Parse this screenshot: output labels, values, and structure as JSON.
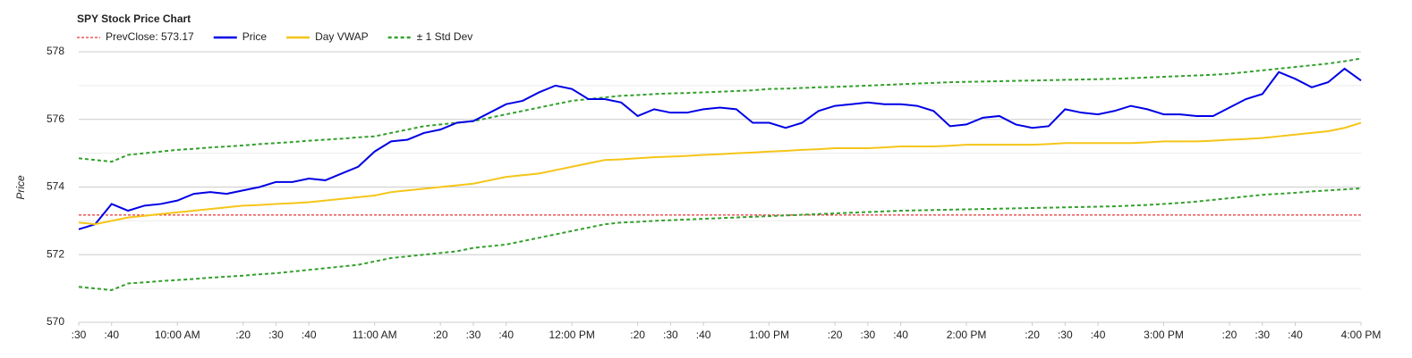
{
  "chart_data": {
    "type": "line",
    "title": "SPY Stock Price Chart",
    "y_label": "Price",
    "x": [
      570,
      575,
      580,
      585,
      590,
      595,
      600,
      605,
      610,
      615,
      620,
      625,
      630,
      635,
      640,
      645,
      650,
      655,
      660,
      665,
      670,
      675,
      680,
      685,
      690,
      695,
      700,
      705,
      710,
      715,
      720,
      725,
      730,
      735,
      740,
      745,
      750,
      755,
      760,
      765,
      770,
      775,
      780,
      785,
      790,
      795,
      800,
      805,
      810,
      815,
      820,
      825,
      830,
      835,
      840,
      845,
      850,
      855,
      860,
      865,
      870,
      875,
      880,
      885,
      890,
      895,
      900,
      905,
      910,
      915,
      920,
      925,
      930,
      935,
      940,
      945,
      950,
      955,
      960
    ],
    "prev_close": {
      "name": "PrevClose: 573.17",
      "value": 573.17,
      "color": "#e00000",
      "dash": true
    },
    "series": [
      {
        "name": "Price",
        "color": "#0000e6",
        "dash": false,
        "values": [
          572.75,
          572.9,
          573.5,
          573.3,
          573.45,
          573.5,
          573.6,
          573.8,
          573.85,
          573.8,
          573.9,
          574.0,
          574.15,
          574.15,
          574.25,
          574.2,
          574.4,
          574.6,
          575.05,
          575.35,
          575.4,
          575.6,
          575.7,
          575.9,
          575.95,
          576.2,
          576.45,
          576.55,
          576.8,
          577.0,
          576.9,
          576.6,
          576.6,
          576.5,
          576.1,
          576.3,
          576.2,
          576.2,
          576.3,
          576.35,
          576.3,
          575.9,
          575.9,
          575.75,
          575.9,
          576.25,
          576.4,
          576.45,
          576.5,
          576.45,
          576.45,
          576.4,
          576.25,
          575.8,
          575.85,
          576.05,
          576.1,
          575.85,
          575.75,
          575.8,
          576.3,
          576.2,
          576.15,
          576.25,
          576.4,
          576.3,
          576.15,
          576.15,
          576.1,
          576.1,
          576.35,
          576.6,
          576.75,
          577.4,
          577.2,
          576.95,
          577.1,
          577.5,
          577.15
        ]
      },
      {
        "name": "Day VWAP",
        "color": "#f5c518",
        "dash": false,
        "values": [
          572.95,
          572.9,
          573.0,
          573.1,
          573.15,
          573.2,
          573.25,
          573.3,
          573.35,
          573.4,
          573.45,
          573.47,
          573.5,
          573.52,
          573.55,
          573.6,
          573.65,
          573.7,
          573.75,
          573.85,
          573.9,
          573.95,
          574.0,
          574.05,
          574.1,
          574.2,
          574.3,
          574.35,
          574.4,
          574.5,
          574.6,
          574.7,
          574.8,
          574.82,
          574.85,
          574.88,
          574.9,
          574.92,
          574.95,
          574.97,
          575.0,
          575.02,
          575.05,
          575.07,
          575.1,
          575.12,
          575.15,
          575.15,
          575.15,
          575.17,
          575.2,
          575.2,
          575.2,
          575.22,
          575.25,
          575.25,
          575.25,
          575.25,
          575.25,
          575.27,
          575.3,
          575.3,
          575.3,
          575.3,
          575.3,
          575.32,
          575.35,
          575.35,
          575.35,
          575.37,
          575.4,
          575.42,
          575.45,
          575.5,
          575.55,
          575.6,
          575.65,
          575.75,
          575.9
        ]
      }
    ],
    "bands": {
      "name": "± 1 Std Dev",
      "color": "#33a02c",
      "dash": true,
      "upper": [
        574.85,
        574.8,
        574.75,
        574.95,
        575.0,
        575.05,
        575.1,
        575.13,
        575.17,
        575.2,
        575.23,
        575.27,
        575.3,
        575.33,
        575.37,
        575.4,
        575.43,
        575.47,
        575.5,
        575.6,
        575.7,
        575.8,
        575.85,
        575.9,
        575.95,
        576.05,
        576.15,
        576.25,
        576.35,
        576.45,
        576.55,
        576.6,
        576.65,
        576.7,
        576.72,
        576.75,
        576.77,
        576.78,
        576.8,
        576.82,
        576.84,
        576.86,
        576.9,
        576.91,
        576.93,
        576.95,
        576.96,
        576.98,
        577.0,
        577.02,
        577.04,
        577.06,
        577.08,
        577.1,
        577.11,
        577.12,
        577.13,
        577.14,
        577.15,
        577.16,
        577.17,
        577.18,
        577.19,
        577.2,
        577.22,
        577.24,
        577.26,
        577.28,
        577.3,
        577.32,
        577.35,
        577.4,
        577.45,
        577.5,
        577.55,
        577.6,
        577.65,
        577.72,
        577.8
      ],
      "lower": [
        571.05,
        571.0,
        570.95,
        571.15,
        571.18,
        571.22,
        571.25,
        571.28,
        571.32,
        571.35,
        571.38,
        571.42,
        571.45,
        571.5,
        571.55,
        571.6,
        571.65,
        571.7,
        571.8,
        571.9,
        571.95,
        572.0,
        572.05,
        572.1,
        572.2,
        572.25,
        572.3,
        572.4,
        572.5,
        572.6,
        572.7,
        572.8,
        572.9,
        572.95,
        572.97,
        573.0,
        573.02,
        573.04,
        573.06,
        573.08,
        573.1,
        573.12,
        573.14,
        573.16,
        573.18,
        573.2,
        573.22,
        573.24,
        573.26,
        573.28,
        573.3,
        573.31,
        573.32,
        573.33,
        573.34,
        573.35,
        573.36,
        573.37,
        573.38,
        573.39,
        573.4,
        573.41,
        573.42,
        573.43,
        573.45,
        573.47,
        573.5,
        573.53,
        573.57,
        573.62,
        573.67,
        573.72,
        573.77,
        573.8,
        573.83,
        573.87,
        573.9,
        573.93,
        573.96
      ]
    },
    "xlim": [
      570,
      960
    ],
    "xticks": [
      {
        "value": 570,
        "label": ":30"
      },
      {
        "value": 580,
        "label": ":40"
      },
      {
        "value": 600,
        "label": "10:00 AM"
      },
      {
        "value": 620,
        "label": ":20"
      },
      {
        "value": 630,
        "label": ":30"
      },
      {
        "value": 640,
        "label": ":40"
      },
      {
        "value": 660,
        "label": "11:00 AM"
      },
      {
        "value": 680,
        "label": ":20"
      },
      {
        "value": 690,
        "label": ":30"
      },
      {
        "value": 700,
        "label": ":40"
      },
      {
        "value": 720,
        "label": "12:00 PM"
      },
      {
        "value": 740,
        "label": ":20"
      },
      {
        "value": 750,
        "label": ":30"
      },
      {
        "value": 760,
        "label": ":40"
      },
      {
        "value": 780,
        "label": "1:00 PM"
      },
      {
        "value": 800,
        "label": ":20"
      },
      {
        "value": 810,
        "label": ":30"
      },
      {
        "value": 820,
        "label": ":40"
      },
      {
        "value": 840,
        "label": "2:00 PM"
      },
      {
        "value": 860,
        "label": ":20"
      },
      {
        "value": 870,
        "label": ":30"
      },
      {
        "value": 880,
        "label": ":40"
      },
      {
        "value": 900,
        "label": "3:00 PM"
      },
      {
        "value": 920,
        "label": ":20"
      },
      {
        "value": 930,
        "label": ":30"
      },
      {
        "value": 940,
        "label": ":40"
      },
      {
        "value": 960,
        "label": "4:00 PM"
      }
    ],
    "ylim": [
      570,
      578
    ],
    "yticks": [
      570,
      572,
      574,
      576,
      578
    ],
    "yminorticks": [
      571,
      573,
      575,
      577
    ],
    "grid": true
  }
}
